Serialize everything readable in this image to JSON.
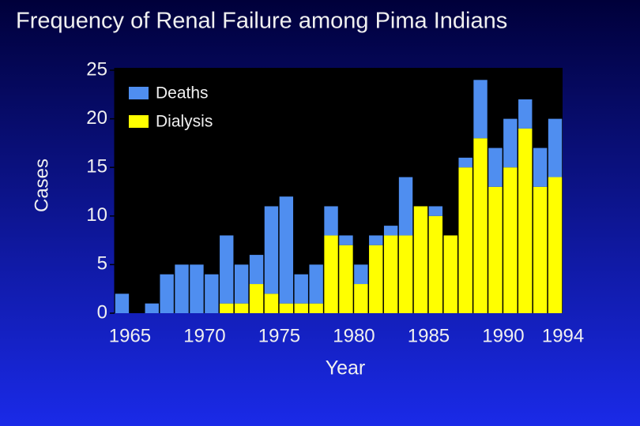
{
  "chart_data": {
    "type": "stacked_bar",
    "title": "Frequency of Renal Failure among Pima Indians",
    "x_label": "Year",
    "y_label": "Cases",
    "categories": [
      1965,
      null,
      null,
      null,
      null,
      1970,
      null,
      null,
      null,
      null,
      1975,
      null,
      null,
      null,
      null,
      1980,
      null,
      null,
      null,
      null,
      1985,
      null,
      null,
      null,
      null,
      1990,
      null,
      null,
      null,
      1994
    ],
    "series": [
      {
        "name": "Dialysis",
        "color": "#ffff00",
        "values": [
          0,
          0,
          0,
          0,
          0,
          0,
          0,
          1,
          1,
          3,
          2,
          1,
          1,
          1,
          8,
          7,
          3,
          7,
          8,
          8,
          11,
          10,
          8,
          15,
          18,
          13,
          15,
          19,
          13,
          14
        ]
      },
      {
        "name": "Deaths",
        "color": "#4f8ef0",
        "values": [
          2,
          0,
          1,
          4,
          5,
          5,
          4,
          7,
          4,
          3,
          9,
          11,
          3,
          4,
          3,
          1,
          2,
          1,
          1,
          6,
          0,
          1,
          0,
          1,
          6,
          4,
          5,
          3,
          4,
          6
        ]
      }
    ],
    "ylim": [
      0,
      25
    ],
    "yticks": [
      0,
      5,
      10,
      15,
      20,
      25
    ],
    "grid": false
  }
}
